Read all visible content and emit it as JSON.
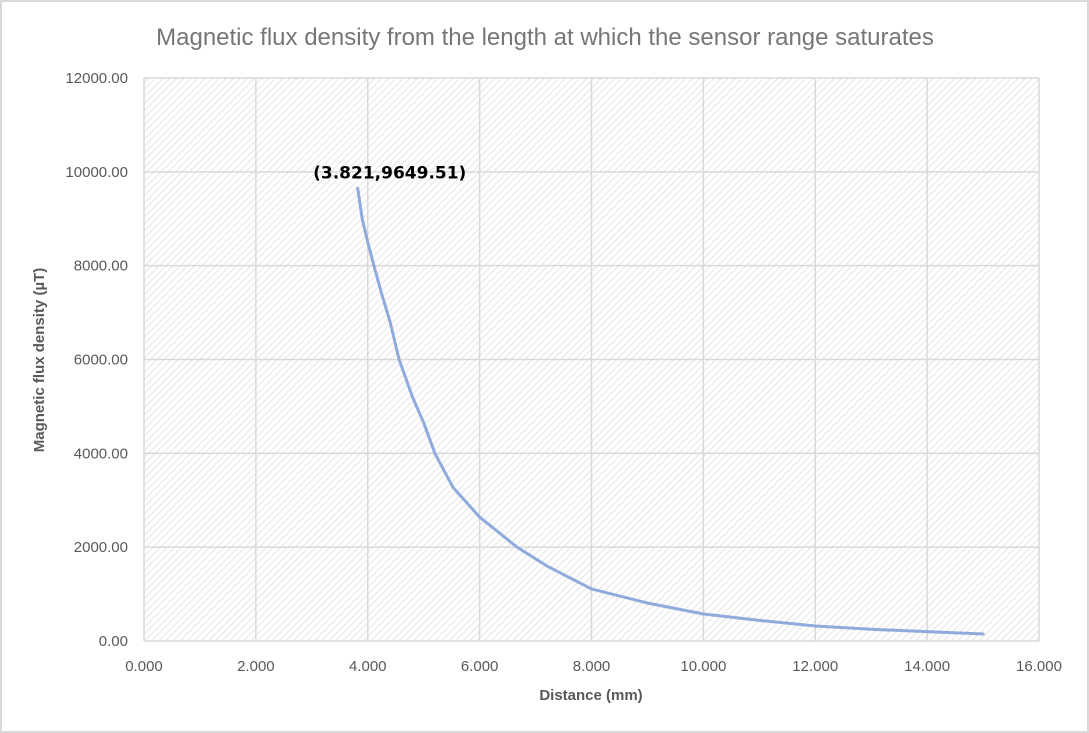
{
  "chart_data": {
    "type": "line",
    "title": "Magnetic flux density from the length at which the sensor range saturates",
    "xlabel": "Distance (mm)",
    "ylabel": "Magnetic flux density (µT)",
    "xlim": [
      0,
      16
    ],
    "ylim": [
      0,
      12000
    ],
    "x_ticks": [
      "0.000",
      "2.000",
      "4.000",
      "6.000",
      "8.000",
      "10.000",
      "12.000",
      "14.000",
      "16.000"
    ],
    "y_ticks": [
      "0.00",
      "2000.00",
      "4000.00",
      "6000.00",
      "8000.00",
      "10000.00",
      "12000.00"
    ],
    "grid": true,
    "legend": "none",
    "series": [
      {
        "name": "Magnetic flux density",
        "color": "#8faadc",
        "x": [
          3.821,
          3.9,
          4.0,
          4.11,
          4.25,
          4.4,
          4.56,
          4.8,
          5.0,
          5.2,
          5.52,
          6.0,
          6.67,
          7.2,
          8.0,
          9.0,
          10.0,
          11.0,
          12.0,
          13.0,
          14.0,
          15.0
        ],
        "y": [
          9649.51,
          9000,
          8500,
          8000,
          7400,
          6800,
          6000,
          5200,
          4650,
          4000,
          3280,
          2640,
          2000,
          1600,
          1110,
          810,
          575,
          440,
          320,
          250,
          200,
          150
        ]
      }
    ],
    "annotations": [
      {
        "text": "(3.821,9649.51)",
        "x": 3.821,
        "y": 9649.51
      }
    ]
  },
  "colors": {
    "plot_background": "#ffffff",
    "hatch": "#d9d9d9",
    "gridline": "#d9d9d9",
    "line": "#8faadc",
    "frame_border": "#d9d9d9"
  }
}
